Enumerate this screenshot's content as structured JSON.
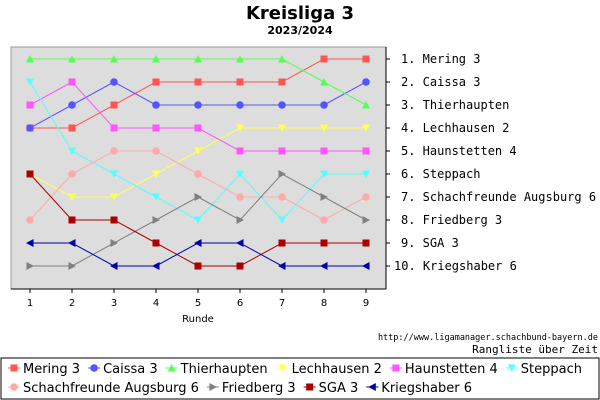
{
  "chart_data": {
    "type": "line",
    "title": "Kreisliga 3",
    "subtitle": "2023/2024",
    "xlabel": "Runde",
    "x": [
      1,
      2,
      3,
      4,
      5,
      6,
      7,
      8,
      9
    ],
    "ylim": [
      1,
      10
    ],
    "y_inverted": true,
    "grid": false,
    "legend_position": "bottom",
    "final_ranking": [
      "1. Mering 3",
      "2. Caissa 3",
      "3. Thierhaupten",
      "4. Lechhausen 2",
      "5. Haunstetten 4",
      "6. Steppach",
      "7. Schachfreunde Augsburg 6",
      "8. Friedberg 3",
      "9. SGA 3",
      "10. Kriegshaber 6"
    ],
    "series": [
      {
        "name": "Mering 3",
        "color": "#ff5555",
        "marker": "square",
        "values": [
          4,
          4,
          3,
          2,
          2,
          2,
          2,
          1,
          1
        ]
      },
      {
        "name": "Caissa 3",
        "color": "#5555ff",
        "marker": "circle",
        "values": [
          4,
          3,
          2,
          3,
          3,
          3,
          3,
          3,
          2
        ]
      },
      {
        "name": "Thierhaupten",
        "color": "#55ff55",
        "marker": "triangle-up",
        "values": [
          1,
          1,
          1,
          1,
          1,
          1,
          1,
          2,
          3
        ]
      },
      {
        "name": "Lechhausen 2",
        "color": "#ffff55",
        "marker": "triangle-down",
        "values": [
          6,
          7,
          7,
          6,
          5,
          4,
          4,
          4,
          4
        ]
      },
      {
        "name": "Haunstetten 4",
        "color": "#ff55ff",
        "marker": "square",
        "values": [
          3,
          2,
          4,
          4,
          4,
          5,
          5,
          5,
          5
        ]
      },
      {
        "name": "Steppach",
        "color": "#55ffff",
        "marker": "triangle-down",
        "values": [
          2,
          5,
          6,
          7,
          8,
          6,
          8,
          6,
          6
        ]
      },
      {
        "name": "Schachfreunde Augsburg 6",
        "color": "#ffaaaa",
        "marker": "circle",
        "values": [
          8,
          6,
          5,
          5,
          6,
          7,
          7,
          8,
          7
        ]
      },
      {
        "name": "Friedberg 3",
        "color": "#808080",
        "marker": "triangle-right",
        "values": [
          10,
          10,
          9,
          8,
          7,
          8,
          6,
          7,
          8
        ]
      },
      {
        "name": "SGA 3",
        "color": "#aa0000",
        "marker": "square",
        "values": [
          6,
          8,
          8,
          9,
          10,
          10,
          9,
          9,
          9
        ]
      },
      {
        "name": "Kriegshaber 6",
        "color": "#0000aa",
        "marker": "triangle-left",
        "values": [
          9,
          9,
          10,
          10,
          9,
          9,
          10,
          10,
          10
        ]
      }
    ],
    "footer_url": "http://www.ligamanager.schachbund-bayern.de",
    "footer_caption": "Rangliste über Zeit"
  }
}
